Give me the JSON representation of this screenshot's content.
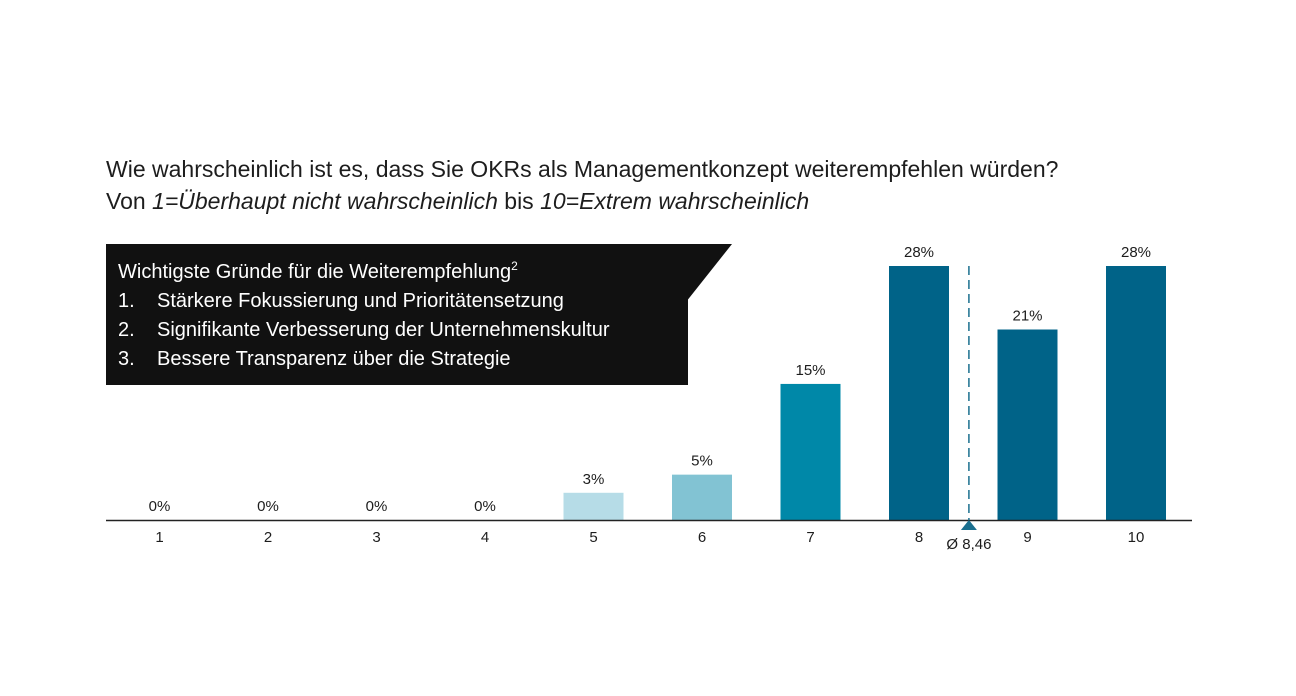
{
  "question": {
    "line1": "Wie wahrscheinlich ist es, dass Sie OKRs als Managementkonzept weiterempfehlen würden?",
    "line2_prefix": "Von ",
    "line2_low": "1=Überhaupt nicht wahrscheinlich",
    "line2_mid": " bis ",
    "line2_high": "10=Extrem wahrscheinlich"
  },
  "callout": {
    "heading": "Wichtigste Gründe für die Weiterempfehlung",
    "footnote": "2",
    "items": [
      {
        "num": "1.",
        "text": "Stärkere Fokussierung und Prioritätensetzung"
      },
      {
        "num": "2.",
        "text": "Signifikante Verbesserung der Unternehmenskultur"
      },
      {
        "num": "3.",
        "text": "Bessere Transparenz über die Strategie"
      }
    ]
  },
  "chart_data": {
    "type": "bar",
    "categories": [
      "1",
      "2",
      "3",
      "4",
      "5",
      "6",
      "7",
      "8",
      "9",
      "10"
    ],
    "values": [
      0,
      0,
      0,
      0,
      3,
      5,
      15,
      28,
      21,
      28
    ],
    "value_labels": [
      "0%",
      "0%",
      "0%",
      "0%",
      "3%",
      "5%",
      "15%",
      "28%",
      "21%",
      "28%"
    ],
    "colors": [
      "#b6dce7",
      "#b6dce7",
      "#b6dce7",
      "#b6dce7",
      "#b6dce7",
      "#82c3d3",
      "#0088a8",
      "#006388",
      "#006388",
      "#006388"
    ],
    "ylim": [
      0,
      28
    ],
    "average": 8.46,
    "average_label": "Ø 8,46",
    "average_color": "#1a6f8f"
  }
}
